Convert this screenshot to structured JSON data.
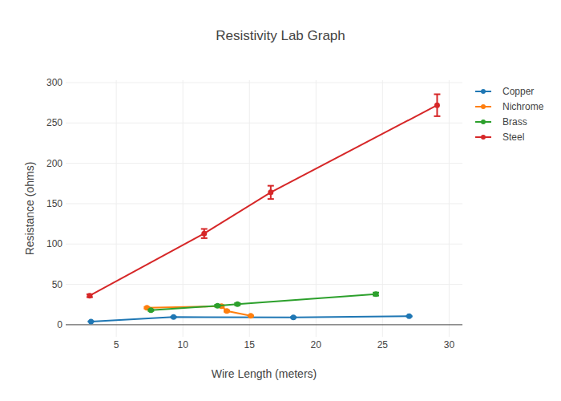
{
  "chart_data": {
    "type": "line",
    "title": "Resistivity Lab Graph",
    "x_label": "Wire Length (meters)",
    "y_label": "Resistance (ohms)",
    "xlim": [
      1.2,
      31
    ],
    "ylim": [
      -15,
      303
    ],
    "xticks": [
      5,
      10,
      15,
      20,
      25,
      30
    ],
    "yticks": [
      0,
      50,
      100,
      150,
      200,
      250,
      300
    ],
    "grid": true,
    "legend": "top-right",
    "marker": "circle",
    "line_style": "solid",
    "series": [
      {
        "name": "Copper",
        "color": "#1f77b4",
        "x": [
          3.1,
          9.3,
          18.3,
          27
        ],
        "values": [
          4,
          9.5,
          9,
          10.5
        ],
        "errors": [
          0.2,
          0.5,
          0.5,
          0.5
        ]
      },
      {
        "name": "Nichrome",
        "color": "#ff7f0e",
        "x": [
          7.3,
          12.9,
          13.3,
          15.1
        ],
        "values": [
          21,
          23,
          17,
          11
        ],
        "errors": [
          1,
          1.2,
          0.9,
          0.6
        ]
      },
      {
        "name": "Brass",
        "color": "#2ca02c",
        "x": [
          7.6,
          12.6,
          14.1,
          24.5
        ],
        "values": [
          18,
          23.5,
          25.5,
          38
        ],
        "errors": [
          0.9,
          1.2,
          1.3,
          1.9
        ]
      },
      {
        "name": "Steel",
        "color": "#d62728",
        "x": [
          3,
          11.6,
          16.6,
          29.1
        ],
        "values": [
          36,
          113,
          164,
          272
        ],
        "errors": [
          1.8,
          5.7,
          8.2,
          13.6
        ]
      }
    ]
  }
}
